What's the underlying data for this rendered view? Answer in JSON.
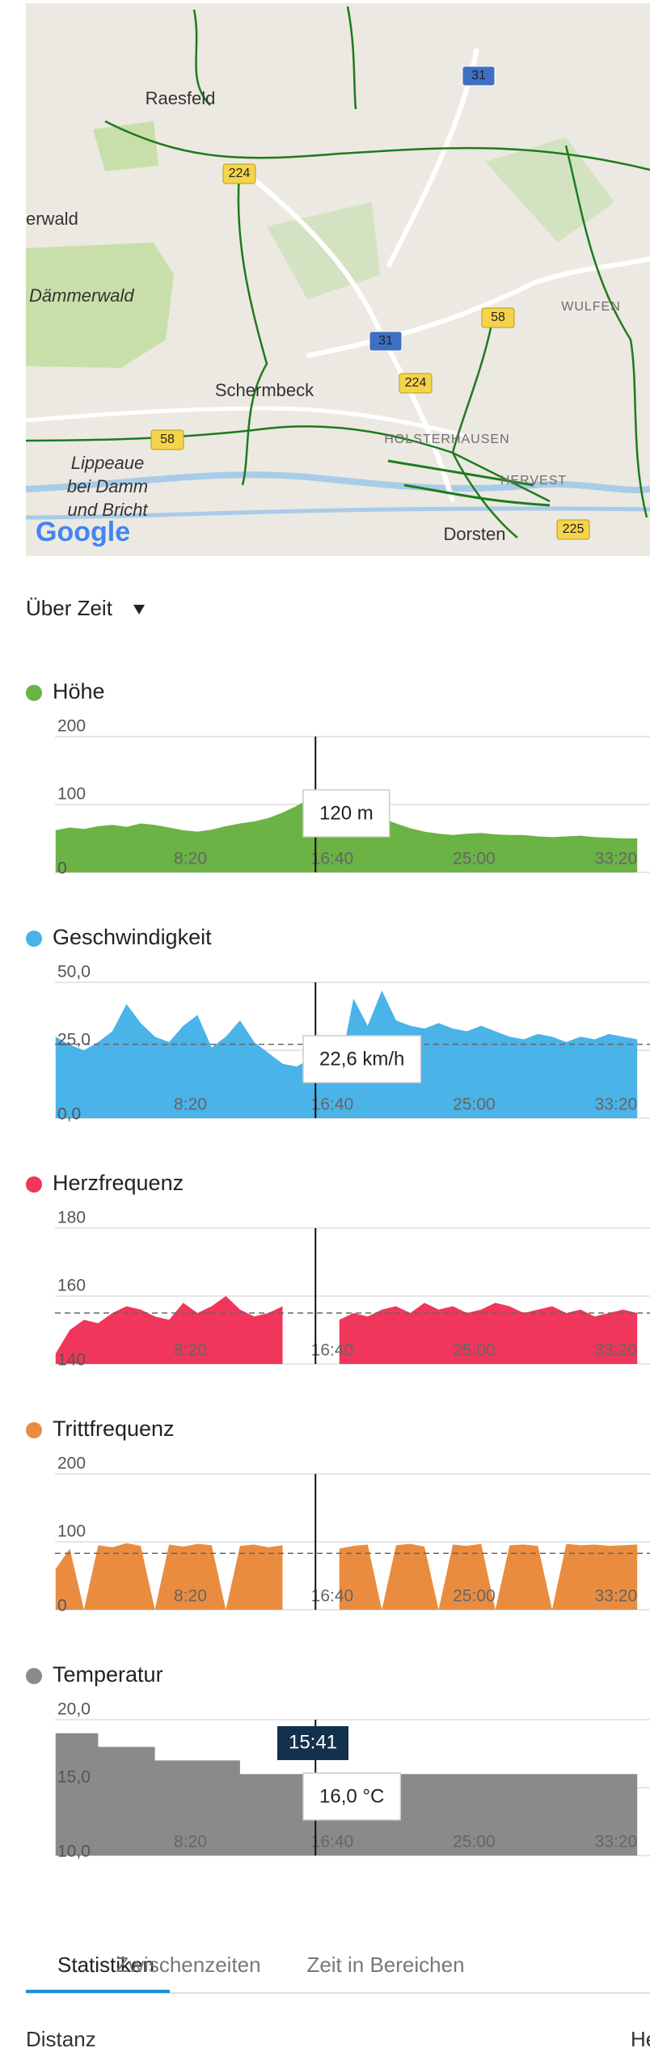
{
  "map": {
    "places": [
      "Raesfeld",
      "erwald",
      "Dämmerwald",
      "WULFEN",
      "Schermbeck",
      "HOLSTERHAUSEN",
      "Lippeaue",
      "bei Damm",
      "und Bricht",
      "HERVEST",
      "Dorsten"
    ],
    "road_badges": [
      "224",
      "31",
      "58",
      "31",
      "224",
      "58",
      "225"
    ],
    "attribution": "Google"
  },
  "view_selector": "Über Zeit",
  "chart_data": [
    {
      "type": "area",
      "title": "Höhe",
      "color": "#6ab344",
      "x": [
        25,
        75,
        125,
        175,
        225,
        275,
        325,
        375,
        425,
        475,
        525,
        575,
        625,
        675,
        725,
        775,
        825,
        875,
        925,
        975,
        1025,
        1075,
        1125,
        1175,
        1225,
        1275,
        1325,
        1375,
        1425,
        1475,
        1525,
        1575,
        1625,
        1675,
        1725,
        1775,
        1825,
        1875,
        1925,
        1975,
        2025,
        2075
      ],
      "values": [
        62,
        66,
        64,
        68,
        70,
        67,
        72,
        70,
        66,
        62,
        60,
        63,
        68,
        72,
        75,
        80,
        88,
        98,
        110,
        118,
        116,
        104,
        90,
        80,
        72,
        65,
        60,
        57,
        55,
        57,
        58,
        56,
        55,
        55,
        53,
        52,
        53,
        54,
        52,
        51,
        50,
        50
      ],
      "xlim": [
        0,
        2120
      ],
      "xticks": [
        {
          "value": 500,
          "label": "8:20"
        },
        {
          "value": 1000,
          "label": "16:40"
        },
        {
          "value": 1500,
          "label": "25:00"
        },
        {
          "value": 2000,
          "label": "33:20"
        }
      ],
      "ylim": [
        0,
        200
      ],
      "yticks": [
        0,
        100,
        200
      ],
      "cursor": 941,
      "tooltip": "120 m"
    },
    {
      "type": "area",
      "title": "Geschwindigkeit",
      "color": "#4ab3e8",
      "x": [
        25,
        75,
        125,
        175,
        225,
        275,
        325,
        375,
        425,
        475,
        525,
        575,
        625,
        675,
        725,
        775,
        825,
        875,
        925,
        975,
        1025,
        1075,
        1125,
        1175,
        1225,
        1275,
        1325,
        1375,
        1425,
        1475,
        1525,
        1575,
        1625,
        1675,
        1725,
        1775,
        1825,
        1875,
        1925,
        1975,
        2025,
        2075
      ],
      "values": [
        30,
        27,
        25,
        28,
        32,
        42,
        35,
        30,
        28,
        34,
        38,
        26,
        30,
        36,
        28,
        24,
        20,
        19,
        22,
        20,
        18,
        44,
        34,
        47,
        36,
        34,
        33,
        35,
        33,
        32,
        34,
        32,
        30,
        29,
        31,
        30,
        28,
        30,
        29,
        31,
        30,
        29
      ],
      "xlim": [
        0,
        2120
      ],
      "xticks": [
        {
          "value": 500,
          "label": "8:20"
        },
        {
          "value": 1000,
          "label": "16:40"
        },
        {
          "value": 1500,
          "label": "25:00"
        },
        {
          "value": 2000,
          "label": "33:20"
        }
      ],
      "ylim": [
        0,
        50
      ],
      "yticks": [
        {
          "value": 0,
          "label": "0,0"
        },
        {
          "value": 25,
          "label": "25,0"
        },
        {
          "value": 50,
          "label": "50,0"
        }
      ],
      "average": 27.2,
      "cursor": 941,
      "tooltip": "22,6 km/h"
    },
    {
      "type": "area",
      "title": "Herzfrequenz",
      "color": "#f0365a",
      "x": [
        25,
        75,
        125,
        175,
        225,
        275,
        325,
        375,
        425,
        475,
        525,
        575,
        625,
        675,
        725,
        775,
        825,
        875,
        925,
        975,
        1025,
        1075,
        1125,
        1175,
        1225,
        1275,
        1325,
        1375,
        1425,
        1475,
        1525,
        1575,
        1625,
        1675,
        1725,
        1775,
        1825,
        1875,
        1925,
        1975,
        2025,
        2075
      ],
      "values": [
        143,
        150,
        153,
        152,
        155,
        157,
        156,
        154,
        153,
        158,
        155,
        157,
        160,
        156,
        154,
        155,
        157,
        null,
        null,
        null,
        153,
        155,
        154,
        156,
        157,
        155,
        158,
        156,
        157,
        155,
        156,
        158,
        157,
        155,
        156,
        157,
        155,
        156,
        154,
        155,
        156,
        155
      ],
      "xlim": [
        0,
        2120
      ],
      "xticks": [
        {
          "value": 500,
          "label": "8:20"
        },
        {
          "value": 1000,
          "label": "16:40"
        },
        {
          "value": 1500,
          "label": "25:00"
        },
        {
          "value": 2000,
          "label": "33:20"
        }
      ],
      "ylim": [
        140,
        180
      ],
      "yticks": [
        140,
        160,
        180
      ],
      "average": 155,
      "cursor": 941
    },
    {
      "type": "area",
      "title": "Trittfrequenz",
      "color": "#ea8c3f",
      "x": [
        25,
        75,
        125,
        175,
        225,
        275,
        325,
        375,
        425,
        475,
        525,
        575,
        625,
        675,
        725,
        775,
        825,
        875,
        925,
        975,
        1025,
        1075,
        1125,
        1175,
        1225,
        1275,
        1325,
        1375,
        1425,
        1475,
        1525,
        1575,
        1625,
        1675,
        1725,
        1775,
        1825,
        1875,
        1925,
        1975,
        2025,
        2075
      ],
      "values": [
        60,
        90,
        0,
        95,
        92,
        98,
        94,
        0,
        96,
        93,
        97,
        95,
        0,
        94,
        96,
        92,
        95,
        null,
        null,
        null,
        90,
        94,
        96,
        0,
        95,
        97,
        93,
        0,
        96,
        94,
        97,
        0,
        95,
        96,
        94,
        0,
        97,
        95,
        96,
        94,
        95,
        96
      ],
      "xlim": [
        0,
        2120
      ],
      "xticks": [
        {
          "value": 500,
          "label": "8:20"
        },
        {
          "value": 1000,
          "label": "16:40"
        },
        {
          "value": 1500,
          "label": "25:00"
        },
        {
          "value": 2000,
          "label": "33:20"
        }
      ],
      "ylim": [
        0,
        200
      ],
      "yticks": [
        0,
        100,
        200
      ],
      "average": 83,
      "cursor": 941
    },
    {
      "type": "step-area",
      "title": "Temperatur",
      "color": "#8a8a8a",
      "x": [
        25,
        75,
        125,
        175,
        225,
        275,
        325,
        375,
        425,
        475,
        525,
        575,
        625,
        675,
        725,
        775,
        825,
        875,
        925,
        975,
        1025,
        1075,
        1125,
        1175,
        1225,
        1275,
        1325,
        1375,
        1425,
        1475,
        1525,
        1575,
        1625,
        1675,
        1725,
        1775,
        1825,
        1875,
        1925,
        1975,
        2025,
        2075
      ],
      "values": [
        19,
        19,
        19,
        18,
        18,
        18,
        18,
        17,
        17,
        17,
        17,
        17,
        17,
        16,
        16,
        16,
        16,
        16,
        16,
        16,
        16,
        16,
        16,
        16,
        16,
        16,
        16,
        16,
        16,
        16,
        16,
        16,
        16,
        16,
        16,
        16,
        16,
        16,
        16,
        16,
        16,
        16
      ],
      "xlim": [
        0,
        2120
      ],
      "xticks": [
        {
          "value": 500,
          "label": "8:20"
        },
        {
          "value": 1000,
          "label": "16:40"
        },
        {
          "value": 1500,
          "label": "25:00"
        },
        {
          "value": 2000,
          "label": "33:20"
        }
      ],
      "ylim": [
        10,
        20
      ],
      "yticks": [
        {
          "value": 10,
          "label": "10,0"
        },
        {
          "value": 15,
          "label": "15,0"
        },
        {
          "value": 20,
          "label": "20,0"
        }
      ],
      "cursor": 941,
      "tooltip_time": "15:41",
      "tooltip": "16,0 °C"
    }
  ],
  "tabs": [
    "Statistiken",
    "Zwischenzeiten",
    "Zeit in Bereichen"
  ],
  "stats": [
    "Distanz",
    "He"
  ]
}
